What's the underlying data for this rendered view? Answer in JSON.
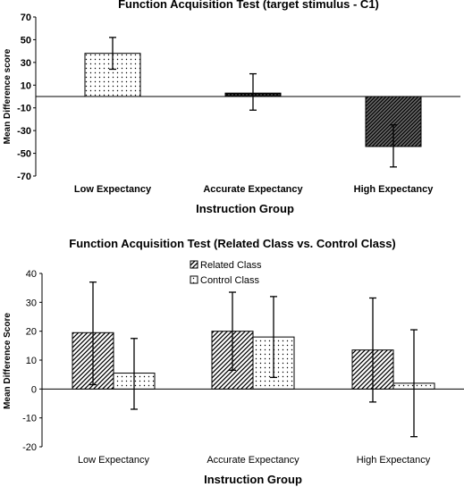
{
  "chart_data": [
    {
      "type": "bar",
      "title": "Function Acquisition Test (target stimulus - C1)",
      "xlabel": "Instruction Group",
      "ylabel": "Mean Difference score",
      "categories": [
        "Low Expectancy",
        "Accurate Expectancy",
        "High Expectancy"
      ],
      "values": [
        38,
        3,
        -44
      ],
      "error_low": [
        24,
        -12,
        -62
      ],
      "error_high": [
        52,
        20,
        -25
      ],
      "patterns": [
        "dots",
        "crosshatch-dark",
        "diagonal-dense"
      ],
      "ylim": [
        -70,
        70
      ],
      "yticks": [
        70,
        50,
        30,
        10,
        -10,
        -30,
        -50,
        -70
      ],
      "grid": false,
      "legend": "none"
    },
    {
      "type": "bar",
      "title": "Function Acquisition Test (Related Class vs. Control Class)",
      "xlabel": "Instruction Group",
      "ylabel": "Mean Difference Score",
      "categories": [
        "Low Expectancy",
        "Accurate Expectancy",
        "High Expectancy"
      ],
      "series": [
        {
          "name": "Related Class",
          "values": [
            19.5,
            20,
            13.5
          ],
          "error_low": [
            1.5,
            6.5,
            -4.5
          ],
          "error_high": [
            37,
            33.5,
            31.5
          ],
          "pattern": "diagonal"
        },
        {
          "name": "Control Class",
          "values": [
            5.5,
            18,
            2
          ],
          "error_low": [
            -7,
            4,
            -16.5
          ],
          "error_high": [
            17.5,
            32,
            20.5
          ],
          "pattern": "dots"
        }
      ],
      "ylim": [
        -20,
        40
      ],
      "yticks": [
        40,
        30,
        20,
        10,
        0,
        -10,
        -20
      ],
      "grid": false,
      "legend": "top-center"
    }
  ]
}
